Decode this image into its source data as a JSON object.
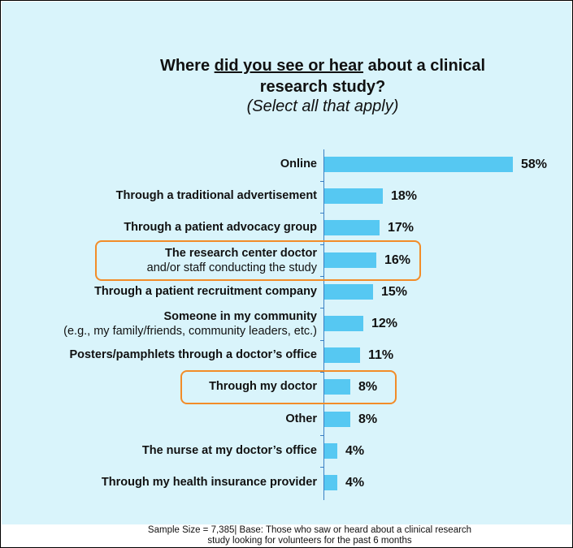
{
  "chart_data": {
    "type": "bar",
    "orientation": "horizontal",
    "title_parts": [
      "Where ",
      "did you see or hear",
      " about a clinical",
      "research study?"
    ],
    "subtitle": "(Select all that apply)",
    "categories": [
      {
        "bold": "Online",
        "sub": ""
      },
      {
        "bold": "Through a traditional advertisement",
        "sub": ""
      },
      {
        "bold": "Through a patient advocacy group",
        "sub": ""
      },
      {
        "bold": "The research center doctor",
        "sub": "and/or staff conducting the study"
      },
      {
        "bold": "Through a patient recruitment company",
        "sub": ""
      },
      {
        "bold": "Someone in my community",
        "sub": "(e.g., my family/friends, community leaders, etc.)"
      },
      {
        "bold": "Posters/pamphlets through a doctor’s office",
        "sub": ""
      },
      {
        "bold": "Through my doctor",
        "sub": ""
      },
      {
        "bold": "Other",
        "sub": ""
      },
      {
        "bold": "The nurse at my doctor’s office",
        "sub": ""
      },
      {
        "bold": "Through my health insurance provider",
        "sub": ""
      }
    ],
    "values": [
      58,
      18,
      17,
      16,
      15,
      12,
      11,
      8,
      8,
      4,
      4
    ],
    "value_labels": [
      "58%",
      "18%",
      "17%",
      "16%",
      "15%",
      "12%",
      "11%",
      "8%",
      "8%",
      "4%",
      "4%"
    ],
    "highlighted": [
      3,
      7
    ],
    "xlim": [
      0,
      60
    ],
    "colors": {
      "bar": "#56c8f2",
      "highlight": "#f28c28",
      "background": "#d9f4fb"
    }
  },
  "footer": {
    "line1": "Sample Size = 7,385| Base: Those who saw or heard about a clinical research",
    "line2": "study looking for volunteers for the past 6 months"
  }
}
